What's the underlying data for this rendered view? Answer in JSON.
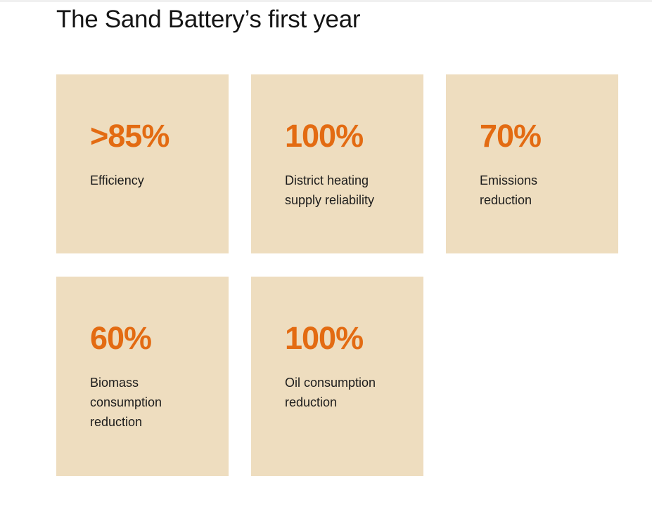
{
  "header": {
    "title": "The Sand Battery’s first year"
  },
  "cards": [
    {
      "value": ">85%",
      "label_lines": [
        "Efficiency"
      ]
    },
    {
      "value": "100%",
      "label_lines": [
        "District heating",
        "supply reliability"
      ]
    },
    {
      "value": "70%",
      "label_lines": [
        "Emissions",
        "reduction"
      ]
    },
    {
      "value": "60%",
      "label_lines": [
        "Biomass",
        "consumption",
        "reduction"
      ]
    },
    {
      "value": "100%",
      "label_lines": [
        "Oil consumption",
        "reduction"
      ]
    }
  ]
}
